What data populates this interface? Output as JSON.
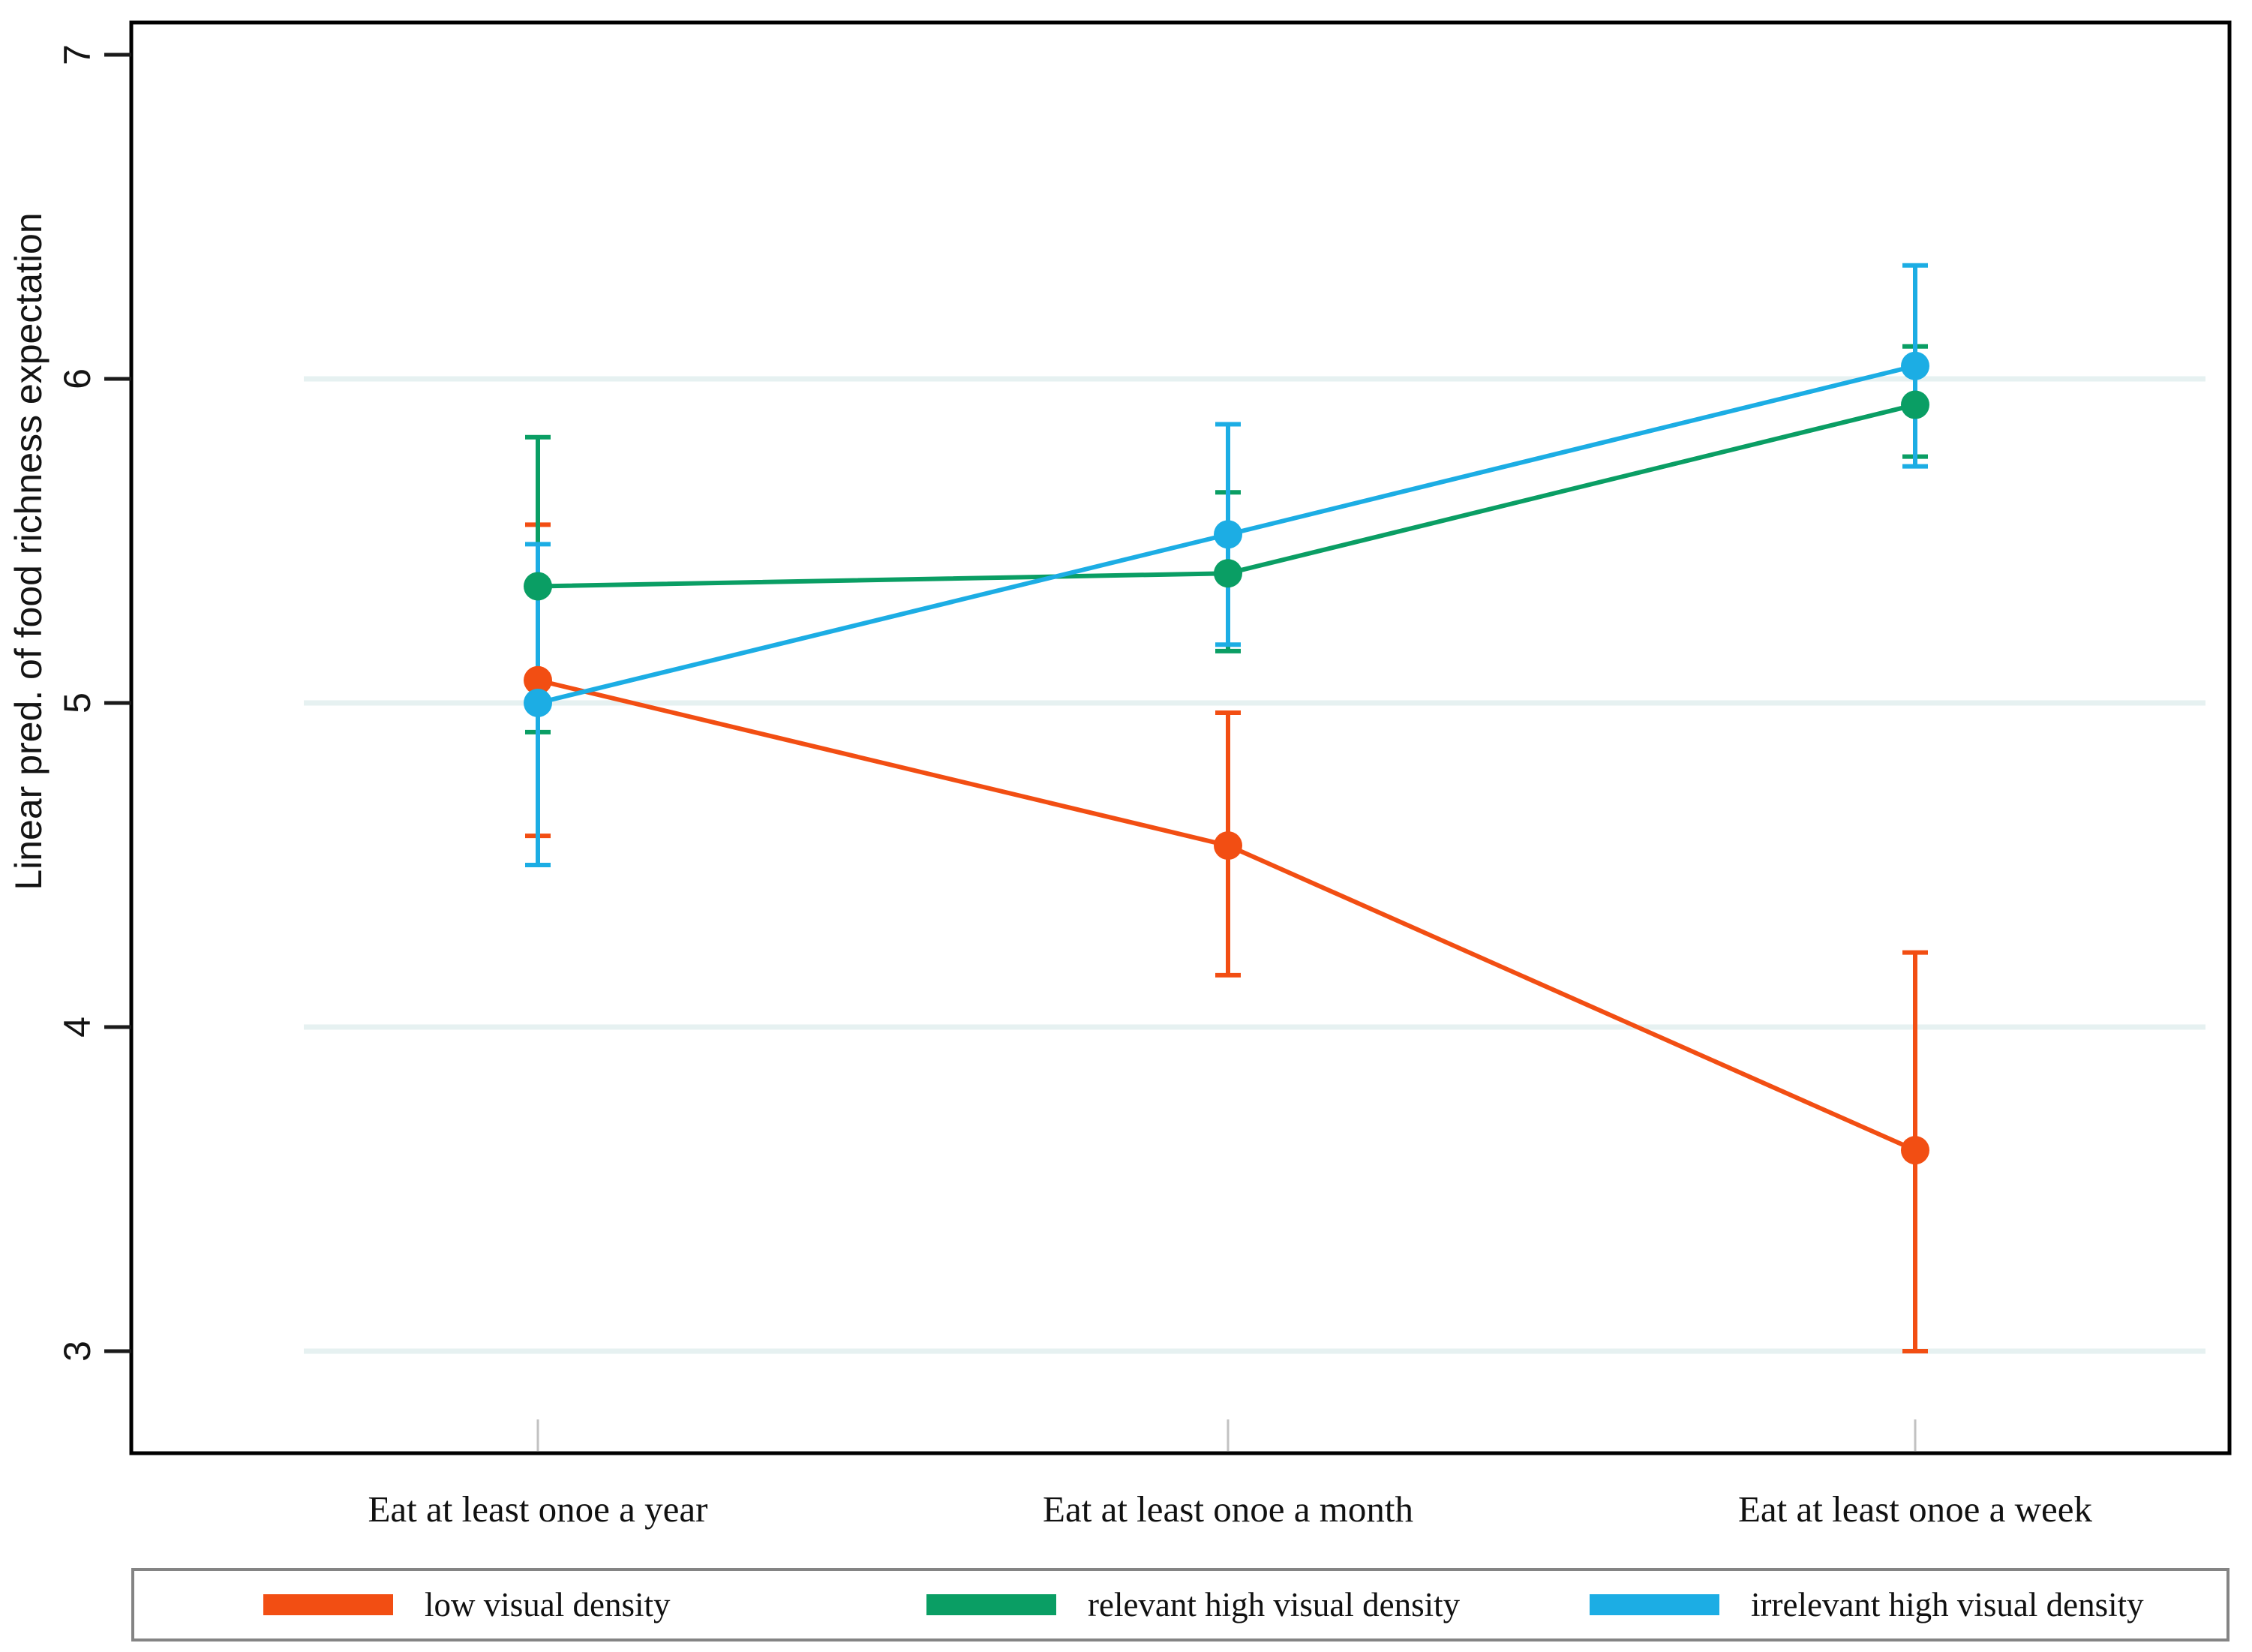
{
  "figure": {
    "background": "#ffffff"
  },
  "y_axis": {
    "title": "Linear pred. of food richness expectation",
    "tick_labels": [
      "3",
      "4",
      "5",
      "6",
      "7"
    ]
  },
  "x_axis": {
    "labels": [
      "Eat at least onoe a year",
      "Eat at least onoe a month",
      "Eat at least onoe a week"
    ]
  },
  "legend": {
    "position": "bottom",
    "border_color": "#848484",
    "items": [
      "low visual density",
      "relevant high visual density",
      "irrelevant high visual density"
    ]
  },
  "colors": {
    "gridline": "#E6F1F1",
    "axis": "#000000",
    "x_tick": "#c2c2c2",
    "text": "#141414"
  },
  "chart_data": {
    "type": "line",
    "title": "",
    "xlabel": "",
    "ylabel": "Linear pred. of food richness expectation",
    "categories": [
      "Eat at least onoe a year",
      "Eat at least onoe a month",
      "Eat at least onoe a week"
    ],
    "yticks": [
      3,
      4,
      5,
      6,
      7
    ],
    "ylim": [
      2.69,
      7.1
    ],
    "grid": "horizontal light gridlines at integer ticks 3-6",
    "legend_position": "bottom box",
    "error_bars": "95% confidence intervals with caps",
    "series": [
      {
        "name": "low visual density",
        "color": "#F24E13",
        "values": [
          5.07,
          4.56,
          3.62
        ],
        "ci_low": [
          4.59,
          4.16,
          3.0
        ],
        "ci_high": [
          5.55,
          4.97,
          4.23
        ]
      },
      {
        "name": "relevant high visual density",
        "color": "#0A9E64",
        "values": [
          5.36,
          5.4,
          5.92
        ],
        "ci_low": [
          4.91,
          5.16,
          5.76
        ],
        "ci_high": [
          5.82,
          5.65,
          6.1
        ]
      },
      {
        "name": "irrelevant high visual density",
        "color": "#1CADE4",
        "values": [
          5.0,
          5.52,
          6.04
        ],
        "ci_low": [
          4.5,
          5.18,
          5.73
        ],
        "ci_high": [
          5.49,
          5.86,
          6.35
        ]
      }
    ]
  }
}
